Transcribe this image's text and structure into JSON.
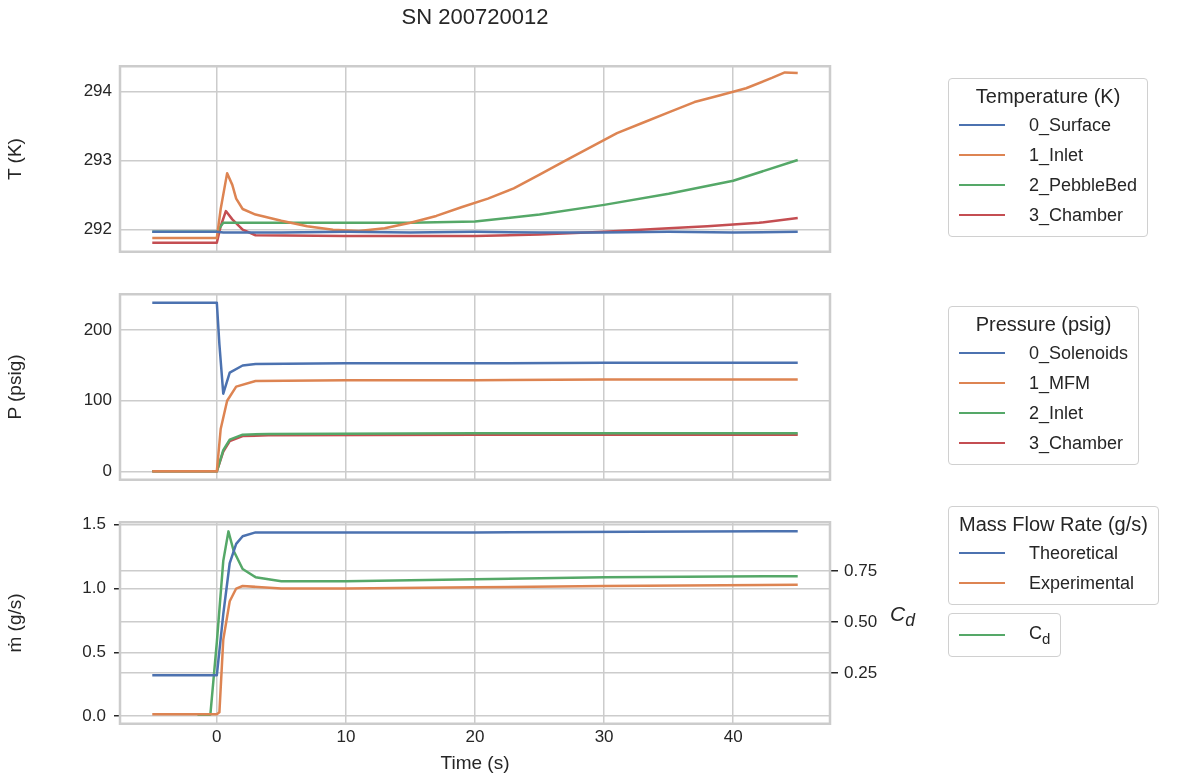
{
  "chart_data": [
    {
      "type": "line",
      "title": "SN 200720012",
      "ylabel": "T (K)",
      "legend_title": "Temperature (K)",
      "legend": "right",
      "grid": true,
      "marker": "none",
      "line_style": "solid",
      "tick_labels": "y",
      "xlim": [
        -7.5,
        47.5
      ],
      "xticks": [
        0,
        10,
        20,
        30,
        40
      ],
      "ylim": [
        291.68,
        294.37
      ],
      "yticks": [
        292,
        293,
        294
      ],
      "series": [
        {
          "name": "0_Surface",
          "color": "#4c72b0",
          "x": [
            -5,
            0,
            0.5,
            5,
            10,
            15,
            20,
            25,
            30,
            35,
            40,
            45
          ],
          "values": [
            291.97,
            291.97,
            291.96,
            291.96,
            291.97,
            291.96,
            291.97,
            291.96,
            291.96,
            291.97,
            291.96,
            291.97
          ]
        },
        {
          "name": "1_Inlet",
          "color": "#dd8452",
          "x": [
            -5,
            0,
            0.3,
            0.8,
            1.2,
            1.5,
            2,
            3,
            5,
            7,
            9,
            11,
            13,
            15,
            17,
            19,
            21,
            23,
            25,
            27,
            29,
            31,
            33,
            35,
            37,
            39,
            41,
            43,
            44,
            45
          ],
          "values": [
            291.88,
            291.88,
            292.3,
            292.82,
            292.65,
            292.45,
            292.3,
            292.22,
            292.13,
            292.05,
            292.0,
            291.98,
            292.02,
            292.1,
            292.2,
            292.33,
            292.45,
            292.6,
            292.8,
            293.0,
            293.2,
            293.4,
            293.55,
            293.7,
            293.85,
            293.95,
            294.05,
            294.2,
            294.28,
            294.27
          ]
        },
        {
          "name": "2_PebbleBed",
          "color": "#55a868",
          "x": [
            -5,
            0,
            0.5,
            1,
            5,
            10,
            15,
            20,
            25,
            30,
            35,
            40,
            45
          ],
          "values": [
            291.97,
            291.97,
            292.1,
            292.1,
            292.1,
            292.1,
            292.1,
            292.12,
            292.22,
            292.36,
            292.52,
            292.71,
            293.01
          ]
        },
        {
          "name": "3_Chamber",
          "color": "#c44e52",
          "x": [
            -5,
            0,
            0.3,
            0.7,
            1.2,
            2,
            3,
            10,
            20,
            25,
            30,
            35,
            38,
            42,
            45
          ],
          "values": [
            291.81,
            291.81,
            292.05,
            292.27,
            292.15,
            292.0,
            291.92,
            291.91,
            291.91,
            291.93,
            291.97,
            292.02,
            292.05,
            292.1,
            292.17
          ]
        }
      ]
    },
    {
      "type": "line",
      "ylabel": "P (psig)",
      "legend_title": "Pressure (psig)",
      "legend": "right",
      "grid": true,
      "marker": "none",
      "line_style": "solid",
      "tick_labels": "y",
      "xlim": [
        -7.5,
        47.5
      ],
      "xticks": [
        0,
        10,
        20,
        30,
        40
      ],
      "ylim": [
        -12,
        251
      ],
      "yticks": [
        0,
        100,
        200
      ],
      "series": [
        {
          "name": "0_Solenoids",
          "color": "#4c72b0",
          "x": [
            -5,
            0,
            0.2,
            0.5,
            1,
            2,
            3,
            10,
            20,
            30,
            45
          ],
          "values": [
            239,
            239,
            180,
            110,
            140,
            150,
            152,
            153,
            153,
            154,
            154
          ]
        },
        {
          "name": "1_MFM",
          "color": "#dd8452",
          "x": [
            -5,
            0,
            0.3,
            0.8,
            1.5,
            3,
            10,
            20,
            30,
            45
          ],
          "values": [
            0,
            0,
            60,
            100,
            120,
            128,
            129,
            129,
            130,
            130
          ]
        },
        {
          "name": "2_Inlet",
          "color": "#55a868",
          "x": [
            -5,
            0,
            0.5,
            1,
            2,
            4,
            20,
            45
          ],
          "values": [
            0,
            0,
            30,
            45,
            52,
            53,
            54,
            54
          ]
        },
        {
          "name": "3_Chamber",
          "color": "#c44e52",
          "x": [
            -5,
            0,
            0.5,
            1,
            2,
            4,
            20,
            45
          ],
          "values": [
            0,
            0,
            28,
            43,
            50,
            51,
            52,
            52
          ]
        }
      ]
    },
    {
      "type": "line",
      "xlabel": "Time (s)",
      "ylabel": "ṁ (g/s)",
      "y2label": "C$_{d}$",
      "legend_title": "Mass Flow Rate (g/s)",
      "legend": "right",
      "grid": true,
      "marker": "none",
      "line_style": "solid",
      "xlim": [
        -7.5,
        47.5
      ],
      "xticks": [
        0,
        10,
        20,
        30,
        40
      ],
      "ylim": [
        -0.06,
        1.52
      ],
      "yticks": [
        {
          "value": 0,
          "label": "0.0"
        },
        {
          "value": 0.5,
          "label": "0.5"
        },
        {
          "value": 1,
          "label": "1.0"
        },
        {
          "value": 1.5,
          "label": "1.5"
        }
      ],
      "y2lim": [
        0,
        0.99
      ],
      "y2ticks": [
        {
          "value": 0.25,
          "label": "0.25"
        },
        {
          "value": 0.5,
          "label": "0.50"
        },
        {
          "value": 0.75,
          "label": "0.75"
        }
      ],
      "series": [
        {
          "name": "Theoretical",
          "color": "#4c72b0",
          "x": [
            -5,
            0,
            0.5,
            1,
            1.5,
            2,
            3,
            5,
            20,
            45
          ],
          "values": [
            0.32,
            0.32,
            0.8,
            1.2,
            1.35,
            1.41,
            1.44,
            1.44,
            1.44,
            1.45
          ]
        },
        {
          "name": "Experimental",
          "color": "#dd8452",
          "x": [
            -5,
            0,
            0.2,
            0.5,
            1,
            1.5,
            2,
            5,
            10,
            20,
            30,
            45
          ],
          "values": [
            0.015,
            0.015,
            0.03,
            0.6,
            0.9,
            1.0,
            1.02,
            1.0,
            1.0,
            1.01,
            1.02,
            1.03
          ]
        },
        {
          "name": "C$_{d}$",
          "color": "#55a868",
          "axis": "y2",
          "x": [
            -1.5,
            -0.5,
            0,
            0.5,
            0.9,
            1.3,
            2,
            3,
            5,
            10,
            20,
            30,
            45
          ],
          "values": [
            0.045,
            0.045,
            0.4,
            0.8,
            0.945,
            0.85,
            0.76,
            0.72,
            0.7,
            0.7,
            0.71,
            0.72,
            0.725
          ]
        }
      ]
    }
  ]
}
